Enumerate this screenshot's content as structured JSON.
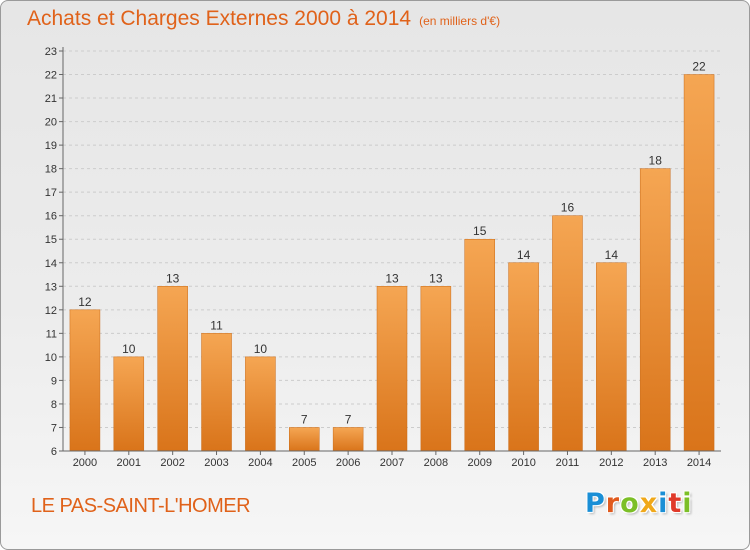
{
  "header": {
    "title": "Achats et Charges Externes 2000 à 2014",
    "subtitle": "(en milliers d'€)"
  },
  "footer": {
    "place": "LE PAS-SAINT-L'HOMER"
  },
  "logo": {
    "letters": [
      "P",
      "r",
      "o",
      "x",
      "i",
      "t",
      "i"
    ],
    "colors": [
      "#1a8fd6",
      "#e05a1e",
      "#7cbf27",
      "#f0a81a",
      "#1a8fd6",
      "#e03a2a",
      "#7cbf27"
    ]
  },
  "colors": {
    "bar_light": "#f5a653",
    "bar_dark": "#d9741a",
    "axis": "#666666",
    "grid": "#cccccc"
  },
  "chart_data": {
    "type": "bar",
    "title": "Achats et Charges Externes 2000 à 2014",
    "subtitle": "(en milliers d'€)",
    "categories": [
      "2000",
      "2001",
      "2002",
      "2003",
      "2004",
      "2005",
      "2006",
      "2007",
      "2008",
      "2009",
      "2010",
      "2011",
      "2012",
      "2013",
      "2014"
    ],
    "values": [
      12,
      10,
      13,
      11,
      10,
      7,
      7,
      13,
      13,
      15,
      14,
      16,
      14,
      18,
      22
    ],
    "ylim": [
      6,
      23
    ],
    "yticks": [
      6,
      7,
      8,
      9,
      10,
      11,
      12,
      13,
      14,
      15,
      16,
      17,
      18,
      19,
      20,
      21,
      22,
      23
    ],
    "xlabel": "",
    "ylabel": "",
    "grid": "horizontal dashed",
    "data_labels": true
  }
}
